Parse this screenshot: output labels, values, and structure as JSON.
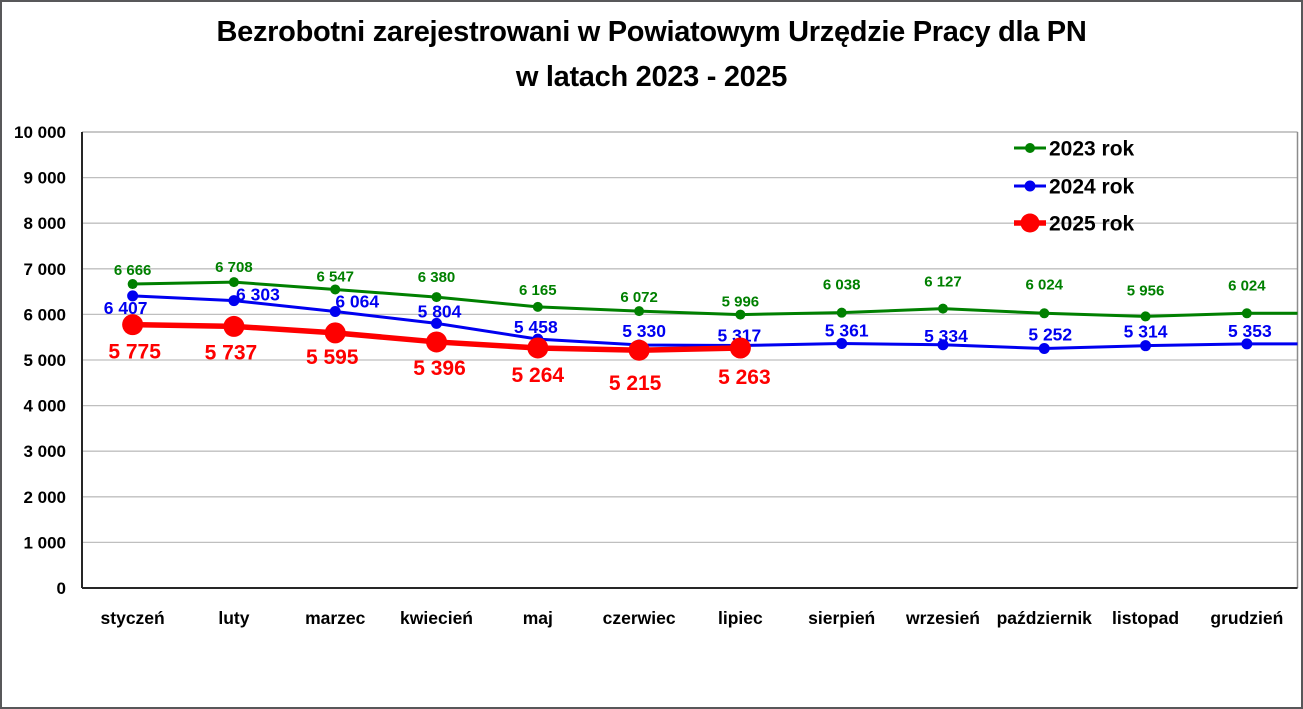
{
  "title": {
    "line1": "Bezrobotni zarejestrowani w Powiatowym Urzędzie Pracy dla PN",
    "line2": "w latach 2023 - 2025"
  },
  "chart_data": {
    "type": "line",
    "title": "Bezrobotni zarejestrowani w Powiatowym Urzędzie Pracy dla PN w latach 2023 - 2025",
    "categories": [
      "styczeń",
      "luty",
      "marzec",
      "kwiecień",
      "maj",
      "czerwiec",
      "lipiec",
      "sierpień",
      "wrzesień",
      "październik",
      "listopad",
      "grudzień"
    ],
    "series": [
      {
        "name": "2023 rok",
        "color": "#008000",
        "values": [
          6666,
          6708,
          6547,
          6380,
          6165,
          6072,
          5996,
          6038,
          6127,
          6024,
          5956,
          6024
        ],
        "labels": [
          "6 666",
          "6 708",
          "6 547",
          "6 380",
          "6 165",
          "6 072",
          "5 996",
          "6 038",
          "6 127",
          "6 024",
          "5 956",
          "6 024"
        ]
      },
      {
        "name": "2024 rok",
        "color": "#0000f0",
        "values": [
          6407,
          6303,
          6064,
          5804,
          5458,
          5330,
          5317,
          5361,
          5334,
          5252,
          5314,
          5353
        ],
        "labels": [
          "6 407",
          "6 303",
          "6 064",
          "5 804",
          "5 458",
          "5 330",
          "5 317",
          "5 361",
          "5 334",
          "5 252",
          "5 314",
          "5 353"
        ]
      },
      {
        "name": "2025 rok",
        "color": "#fe0000",
        "values": [
          5775,
          5737,
          5595,
          5396,
          5264,
          5215,
          5263
        ],
        "labels": [
          "5 775",
          "5 737",
          "5 595",
          "5 396",
          "5 264",
          "5 215",
          "5 263"
        ]
      }
    ],
    "ylim": [
      0,
      10000
    ],
    "ytick_step": 1000,
    "ytick_labels": [
      "0",
      "1 000",
      "2 000",
      "3 000",
      "4 000",
      "5 000",
      "6 000",
      "7 000",
      "8 000",
      "9 000",
      "10 000"
    ],
    "grid": true,
    "legend_position": "top-right",
    "gridline_color": "#bfbfbf",
    "axis_color": "#262626",
    "text_color": "#000000"
  }
}
